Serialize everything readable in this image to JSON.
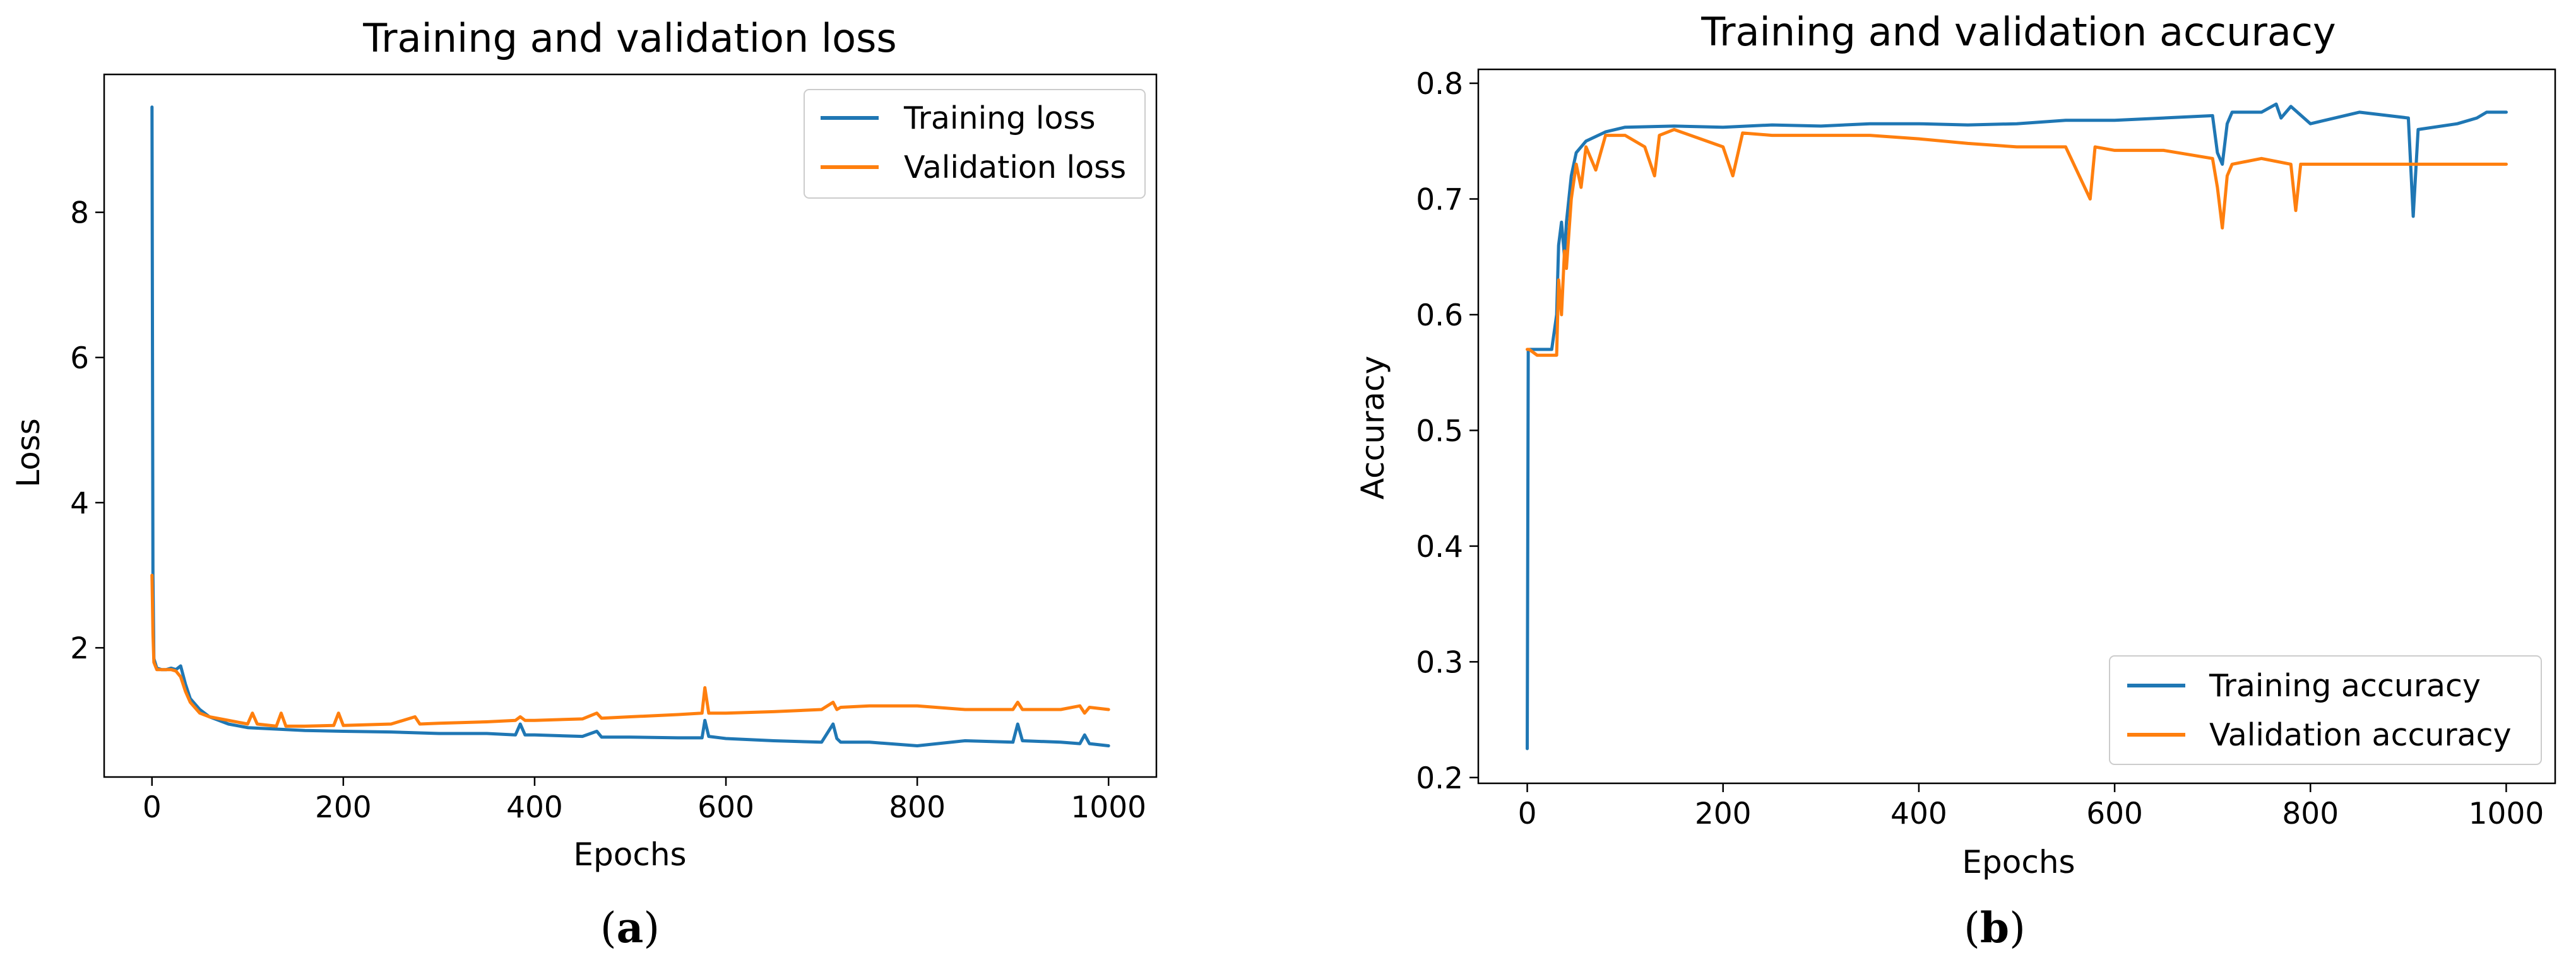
{
  "colors": {
    "training": "#1f77b4",
    "validation": "#ff7f0e"
  },
  "chart_data": [
    {
      "type": "line",
      "caption_letter": "a",
      "title": "Training and validation loss",
      "xlabel": "Epochs",
      "ylabel": "Loss",
      "xlim": [
        -50,
        1050
      ],
      "ylim": [
        0.22,
        9.9
      ],
      "xticks": [
        0,
        200,
        400,
        600,
        800,
        1000
      ],
      "xtick_labels": [
        "0",
        "200",
        "400",
        "600",
        "800",
        "1000"
      ],
      "yticks": [
        2,
        4,
        6,
        8
      ],
      "ytick_labels": [
        "2",
        "4",
        "6",
        "8"
      ],
      "legend_position": "top-right",
      "series": [
        {
          "name": "Training loss",
          "color_key": "training",
          "x": [
            0,
            1,
            2,
            5,
            10,
            15,
            20,
            25,
            30,
            35,
            40,
            50,
            60,
            80,
            100,
            130,
            160,
            200,
            250,
            300,
            350,
            380,
            385,
            390,
            400,
            450,
            465,
            470,
            500,
            550,
            575,
            578,
            582,
            600,
            650,
            700,
            712,
            716,
            720,
            750,
            800,
            850,
            900,
            905,
            910,
            950,
            970,
            975,
            980,
            1000
          ],
          "y": [
            9.45,
            3.0,
            1.85,
            1.72,
            1.7,
            1.7,
            1.72,
            1.7,
            1.75,
            1.5,
            1.3,
            1.15,
            1.05,
            0.95,
            0.9,
            0.88,
            0.86,
            0.85,
            0.84,
            0.82,
            0.82,
            0.8,
            0.95,
            0.8,
            0.8,
            0.78,
            0.85,
            0.77,
            0.77,
            0.76,
            0.76,
            1.0,
            0.78,
            0.75,
            0.72,
            0.7,
            0.95,
            0.75,
            0.7,
            0.7,
            0.65,
            0.72,
            0.7,
            0.95,
            0.72,
            0.7,
            0.68,
            0.8,
            0.68,
            0.65
          ]
        },
        {
          "name": "Validation loss",
          "color_key": "validation",
          "x": [
            0,
            1,
            2,
            5,
            10,
            20,
            25,
            30,
            35,
            40,
            50,
            60,
            80,
            100,
            105,
            110,
            130,
            135,
            140,
            160,
            190,
            195,
            200,
            250,
            275,
            280,
            300,
            350,
            380,
            385,
            390,
            400,
            450,
            465,
            470,
            500,
            550,
            575,
            578,
            582,
            600,
            650,
            700,
            712,
            716,
            720,
            750,
            800,
            850,
            900,
            905,
            910,
            950,
            970,
            975,
            980,
            1000
          ],
          "y": [
            3.0,
            2.2,
            1.8,
            1.7,
            1.7,
            1.7,
            1.68,
            1.6,
            1.4,
            1.25,
            1.1,
            1.05,
            1.0,
            0.95,
            1.1,
            0.95,
            0.92,
            1.1,
            0.92,
            0.92,
            0.93,
            1.1,
            0.93,
            0.95,
            1.05,
            0.95,
            0.96,
            0.98,
            1.0,
            1.05,
            1.0,
            1.0,
            1.02,
            1.1,
            1.03,
            1.05,
            1.08,
            1.1,
            1.45,
            1.1,
            1.1,
            1.12,
            1.15,
            1.25,
            1.15,
            1.18,
            1.2,
            1.2,
            1.15,
            1.15,
            1.25,
            1.15,
            1.15,
            1.2,
            1.1,
            1.18,
            1.15
          ]
        }
      ]
    },
    {
      "type": "line",
      "caption_letter": "b",
      "title": "Training and validation accuracy",
      "xlabel": "Epochs",
      "ylabel": "Accuracy",
      "xlim": [
        -50,
        1050
      ],
      "ylim": [
        0.195,
        0.812
      ],
      "xticks": [
        0,
        200,
        400,
        600,
        800,
        1000
      ],
      "xtick_labels": [
        "0",
        "200",
        "400",
        "600",
        "800",
        "1000"
      ],
      "yticks": [
        0.2,
        0.3,
        0.4,
        0.5,
        0.6,
        0.7,
        0.8
      ],
      "ytick_labels": [
        "0.2",
        "0.3",
        "0.4",
        "0.5",
        "0.6",
        "0.7",
        "0.8"
      ],
      "legend_position": "lower-right",
      "series": [
        {
          "name": "Training accuracy",
          "color_key": "training",
          "x": [
            0,
            1,
            2,
            10,
            20,
            25,
            30,
            32,
            35,
            38,
            40,
            45,
            50,
            60,
            80,
            100,
            150,
            200,
            250,
            300,
            350,
            400,
            450,
            500,
            550,
            600,
            650,
            700,
            705,
            710,
            715,
            720,
            750,
            765,
            770,
            780,
            800,
            850,
            900,
            905,
            910,
            950,
            970,
            980,
            1000
          ],
          "y": [
            0.225,
            0.57,
            0.57,
            0.57,
            0.57,
            0.57,
            0.6,
            0.66,
            0.68,
            0.65,
            0.68,
            0.72,
            0.74,
            0.75,
            0.758,
            0.762,
            0.763,
            0.762,
            0.764,
            0.763,
            0.765,
            0.765,
            0.764,
            0.765,
            0.768,
            0.768,
            0.77,
            0.772,
            0.74,
            0.73,
            0.765,
            0.775,
            0.775,
            0.782,
            0.77,
            0.78,
            0.765,
            0.775,
            0.77,
            0.685,
            0.76,
            0.765,
            0.77,
            0.775,
            0.775
          ]
        },
        {
          "name": "Validation accuracy",
          "color_key": "validation",
          "x": [
            0,
            1,
            2,
            10,
            20,
            30,
            32,
            35,
            38,
            40,
            45,
            50,
            55,
            60,
            70,
            80,
            100,
            120,
            130,
            135,
            150,
            200,
            210,
            220,
            250,
            300,
            350,
            400,
            450,
            500,
            550,
            575,
            580,
            600,
            650,
            700,
            705,
            710,
            715,
            720,
            750,
            780,
            785,
            790,
            800,
            850,
            900,
            950,
            1000
          ],
          "y": [
            0.57,
            0.57,
            0.57,
            0.565,
            0.565,
            0.565,
            0.63,
            0.6,
            0.655,
            0.64,
            0.7,
            0.73,
            0.71,
            0.745,
            0.725,
            0.755,
            0.755,
            0.745,
            0.72,
            0.755,
            0.76,
            0.745,
            0.72,
            0.757,
            0.755,
            0.755,
            0.755,
            0.752,
            0.748,
            0.745,
            0.745,
            0.7,
            0.745,
            0.742,
            0.742,
            0.735,
            0.71,
            0.675,
            0.72,
            0.73,
            0.735,
            0.73,
            0.69,
            0.73,
            0.73,
            0.73,
            0.73,
            0.73,
            0.73
          ]
        }
      ]
    }
  ]
}
